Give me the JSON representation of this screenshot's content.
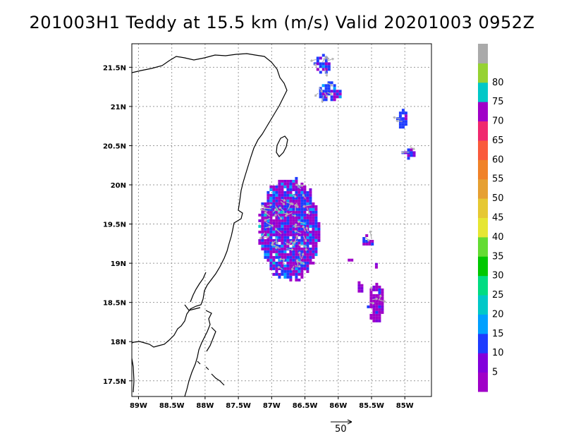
{
  "title": "201003H1 Teddy at 15.5 km (m/s) Valid 20201003 0952Z",
  "map": {
    "lon_range": [
      -89.1,
      -84.6
    ],
    "lat_range": [
      17.3,
      21.8
    ],
    "grid": true,
    "lon_ticks": [
      {
        "value": -89.0,
        "label": "89W"
      },
      {
        "value": -88.5,
        "label": "88.5W"
      },
      {
        "value": -88.0,
        "label": "88W"
      },
      {
        "value": -87.5,
        "label": "87.5W"
      },
      {
        "value": -87.0,
        "label": "87W"
      },
      {
        "value": -86.5,
        "label": "86.5W"
      },
      {
        "value": -86.0,
        "label": "86W"
      },
      {
        "value": -85.5,
        "label": "85.5W"
      },
      {
        "value": -85.0,
        "label": "85W"
      }
    ],
    "lat_ticks": [
      {
        "value": 17.5,
        "label": "17.5N"
      },
      {
        "value": 18.0,
        "label": "18N"
      },
      {
        "value": 18.5,
        "label": "18.5N"
      },
      {
        "value": 19.0,
        "label": "19N"
      },
      {
        "value": 19.5,
        "label": "19.5N"
      },
      {
        "value": 20.0,
        "label": "20N"
      },
      {
        "value": 20.5,
        "label": "20.5N"
      },
      {
        "value": 21.0,
        "label": "21N"
      },
      {
        "value": 21.5,
        "label": "21.5N"
      }
    ]
  },
  "colorbar": {
    "colors": [
      "#a000c8",
      "#8200dc",
      "#1e3cff",
      "#00a0ff",
      "#00c8c8",
      "#00dc82",
      "#00c800",
      "#64dc32",
      "#e6e632",
      "#e6c832",
      "#e6a032",
      "#f08228",
      "#fa5a3c",
      "#f0286e",
      "#a000c8",
      "#00c8c8",
      "#96d232",
      "#aaaaaa"
    ],
    "labels": [
      "5",
      "10",
      "15",
      "20",
      "25",
      "30",
      "35",
      "40",
      "45",
      "50",
      "55",
      "60",
      "65",
      "70",
      "75",
      "80"
    ]
  },
  "reference_vector": {
    "label": "50"
  },
  "coastline_description": "Yucatan peninsula coastline and Cozumel island"
}
